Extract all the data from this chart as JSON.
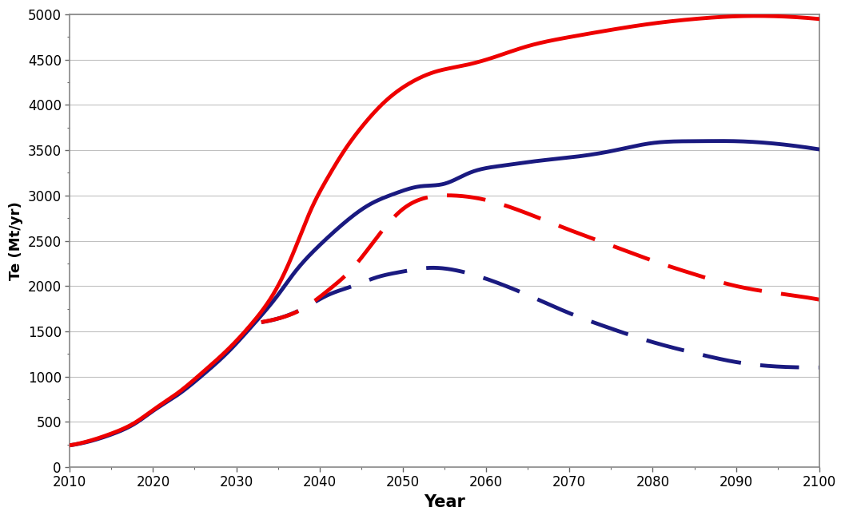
{
  "title": "",
  "xlabel": "Year",
  "ylabel": "Te (Mt/yr)",
  "xlim": [
    2010,
    2100
  ],
  "ylim": [
    0,
    5000
  ],
  "xticks": [
    2010,
    2020,
    2030,
    2040,
    2050,
    2060,
    2070,
    2080,
    2090,
    2100
  ],
  "yticks": [
    0,
    500,
    1000,
    1500,
    2000,
    2500,
    3000,
    3500,
    4000,
    4500,
    5000
  ],
  "background_color": "#ffffff",
  "plot_background": "#ffffff",
  "solid_red": {
    "color": "#ee0000",
    "lw": 3.5,
    "x": [
      2010,
      2012,
      2015,
      2018,
      2020,
      2023,
      2026,
      2029,
      2032,
      2035,
      2037,
      2039,
      2041,
      2043,
      2045,
      2048,
      2051,
      2054,
      2057,
      2060,
      2065,
      2070,
      2075,
      2080,
      2085,
      2090,
      2095,
      2100
    ],
    "y": [
      240,
      280,
      370,
      500,
      630,
      820,
      1050,
      1300,
      1600,
      2000,
      2400,
      2850,
      3200,
      3500,
      3750,
      4050,
      4250,
      4370,
      4430,
      4500,
      4650,
      4750,
      4830,
      4900,
      4950,
      4980,
      4980,
      4950
    ]
  },
  "solid_blue": {
    "color": "#1a1a80",
    "lw": 3.5,
    "x": [
      2010,
      2012,
      2015,
      2018,
      2020,
      2023,
      2026,
      2029,
      2032,
      2035,
      2037,
      2040,
      2043,
      2046,
      2049,
      2052,
      2055,
      2058,
      2062,
      2066,
      2070,
      2075,
      2080,
      2085,
      2090,
      2095,
      2100
    ],
    "y": [
      240,
      275,
      360,
      490,
      620,
      800,
      1020,
      1270,
      1570,
      1900,
      2150,
      2450,
      2700,
      2900,
      3020,
      3100,
      3130,
      3250,
      3330,
      3380,
      3420,
      3490,
      3580,
      3600,
      3600,
      3570,
      3510
    ]
  },
  "dashed_red": {
    "color": "#ee0000",
    "lw": 3.5,
    "x": [
      2033,
      2035,
      2038,
      2041,
      2044,
      2047,
      2050,
      2053,
      2056,
      2060,
      2065,
      2070,
      2075,
      2080,
      2085,
      2090,
      2095,
      2100
    ],
    "y": [
      1600,
      1640,
      1750,
      1950,
      2200,
      2550,
      2850,
      2980,
      3000,
      2950,
      2800,
      2620,
      2450,
      2280,
      2130,
      2000,
      1920,
      1850
    ]
  },
  "dashed_blue": {
    "color": "#1a1a80",
    "lw": 3.5,
    "x": [
      2033,
      2035,
      2038,
      2041,
      2044,
      2047,
      2050,
      2053,
      2056,
      2060,
      2065,
      2070,
      2075,
      2080,
      2085,
      2090,
      2095,
      2100
    ],
    "y": [
      1600,
      1640,
      1750,
      1900,
      2000,
      2100,
      2160,
      2200,
      2180,
      2080,
      1900,
      1700,
      1530,
      1380,
      1260,
      1160,
      1110,
      1100
    ]
  },
  "grid_color": "#c0c0c0",
  "border_color": "#888888",
  "xlabel_fontsize": 15,
  "ylabel_fontsize": 13,
  "tick_fontsize": 12,
  "dash_pattern": [
    10,
    5
  ]
}
